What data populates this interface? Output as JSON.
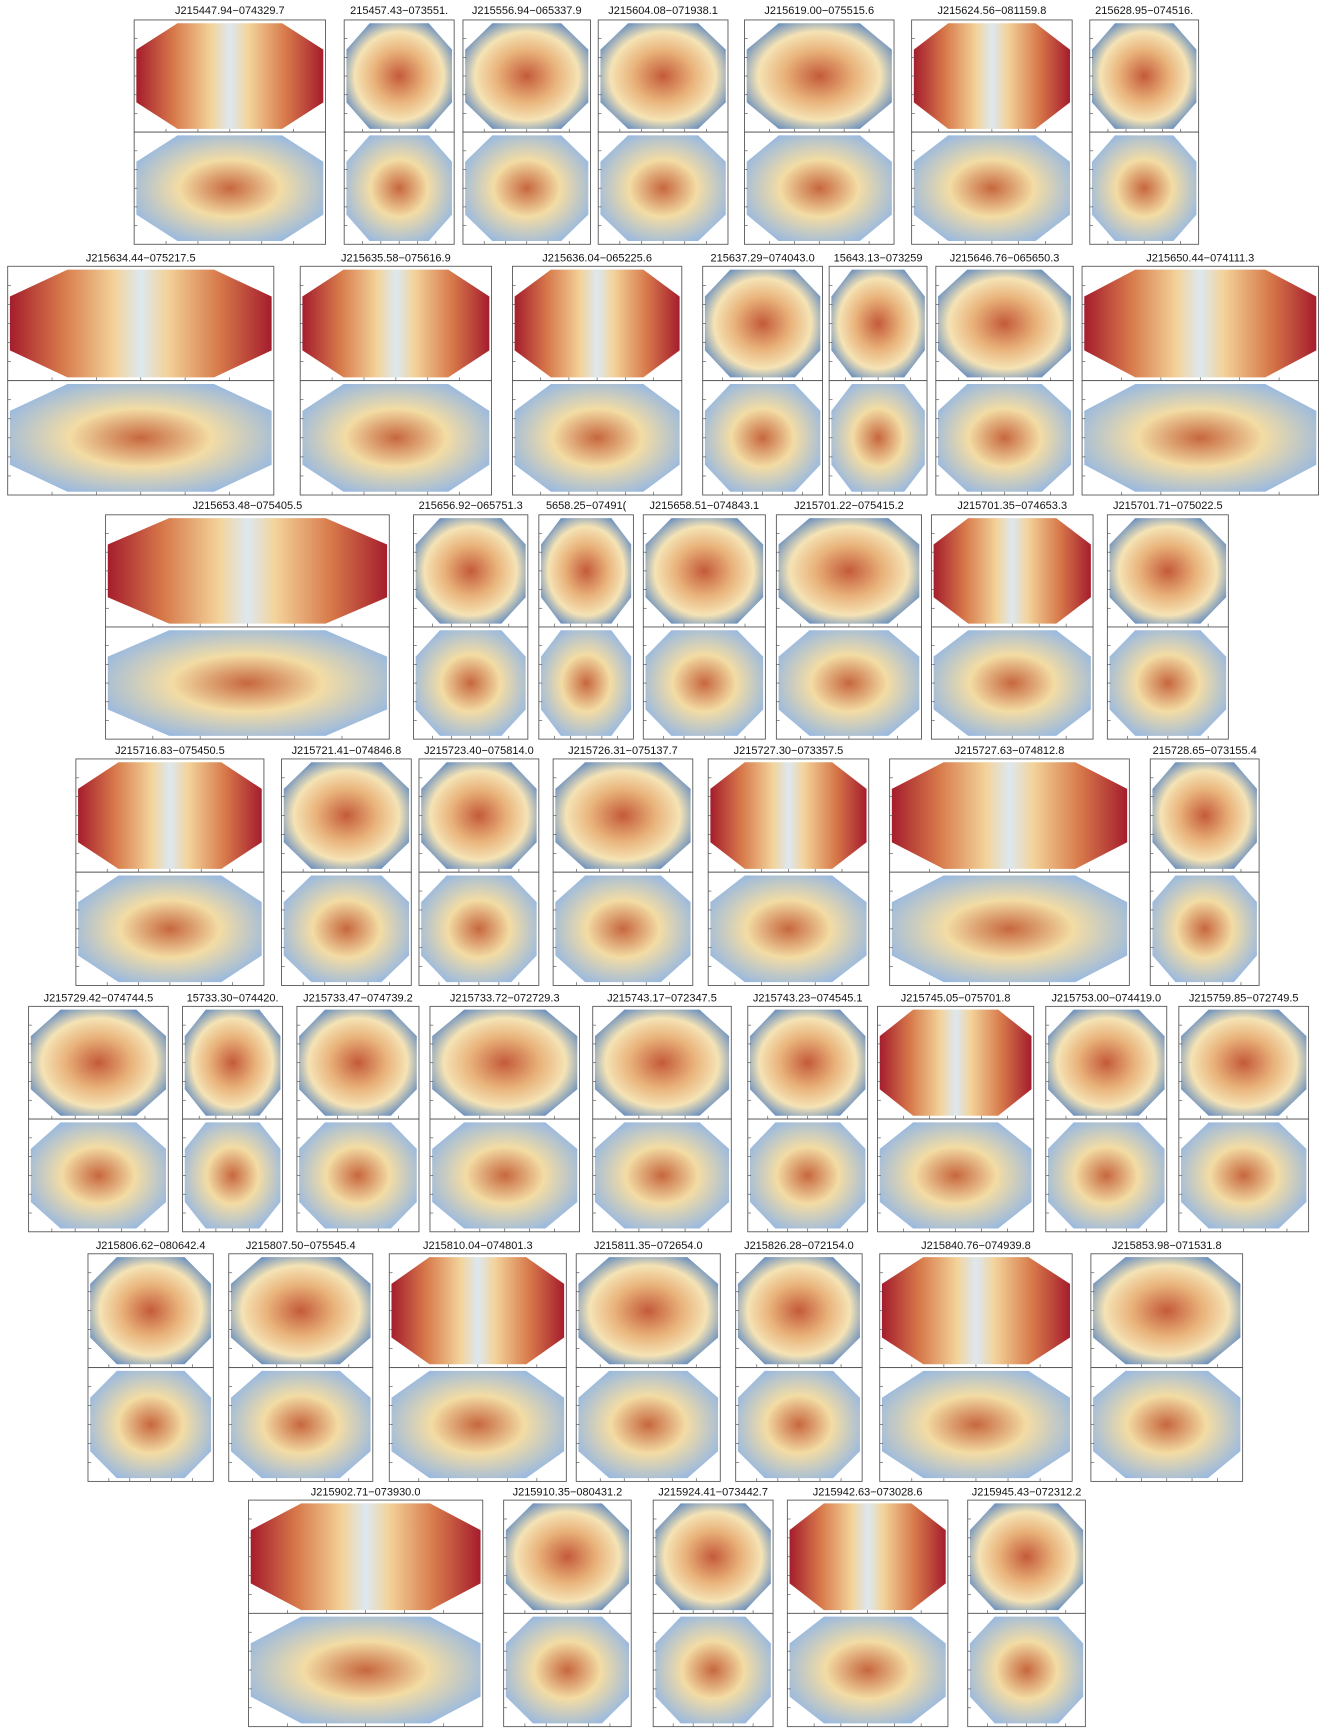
{
  "rows": [
    [
      "J215447.94−074329.7",
      "215457.43−073551.",
      "J215556.94−065337.9",
      "J215604.08−071938.1",
      "J215619.00−075515.6",
      "J215624.56−081159.8",
      "215628.95−074516."
    ],
    [
      "J215634.44−075217.5",
      "J215635.58−075616.9",
      "J215636.04−065225.6",
      "215637.29−074043.0",
      "15643.13−073259",
      "J215646.76−065650.3",
      "J215650.44−074111.3"
    ],
    [
      "J215653.48−075405.5",
      "215656.92−065751.3",
      "5658.25−07491(",
      "J215658.51−074843.1",
      "J215701.22−075415.2",
      "J215701.35−074653.3",
      "J215701.71−075022.5"
    ],
    [
      "J215716.83−075450.5",
      "J215721.41−074846.8",
      "J215723.40−075814.0",
      "J215726.31−075137.7",
      "J215727.30−073357.5",
      "J215727.63−074812.8",
      "215728.65−073155.4"
    ],
    [
      "J215729.42−074744.5",
      "15733.30−074420.",
      "J215733.47−074739.2",
      "J215733.72−072729.3",
      "J215743.17−072347.5",
      "J215743.23−074545.1",
      "J215745.05−075701.8",
      "J215753.00−074419.0",
      "J215759.85−072749.5"
    ],
    [
      "J215806.62−080642.4",
      "J215807.50−075545.4",
      "J215810.04−074801.3",
      "J215811.35−072654.0",
      "J215826.28−072154.0",
      "J215840.76−074939.8",
      "J215853.98−071531.8"
    ],
    [
      "J215902.71−073930.0",
      "J215910.35−080431.2",
      "J215924.41−073442.7",
      "J215942.63−073028.6",
      "J215945.43−072312.2"
    ]
  ]
}
